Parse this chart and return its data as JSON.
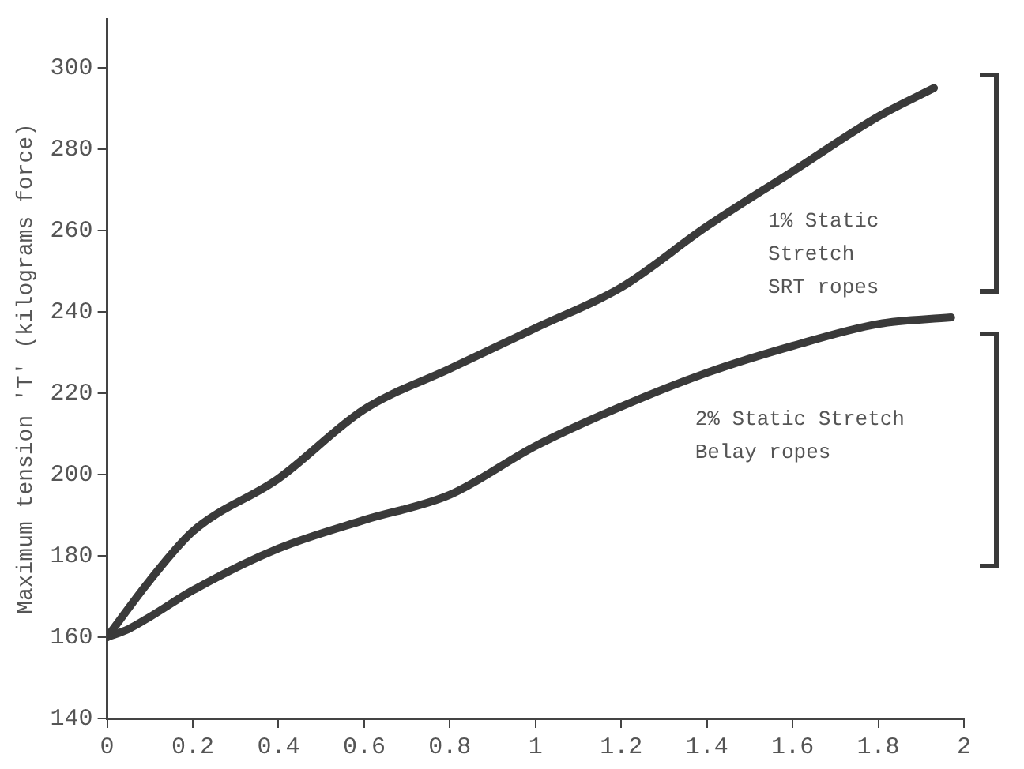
{
  "chart_data": {
    "type": "line",
    "ylabel": "Maximum tension 'T' (kilograms force)",
    "xlim": [
      0,
      2
    ],
    "xticks": [
      0,
      0.2,
      0.4,
      0.6,
      0.8,
      1,
      1.2,
      1.4,
      1.6,
      1.8,
      2
    ],
    "ylim": [
      140,
      312
    ],
    "yticks": [
      140,
      160,
      180,
      200,
      220,
      240,
      260,
      280,
      300
    ],
    "grid": false,
    "legend": false,
    "marker": "none",
    "line_style": "solid",
    "series": [
      {
        "name": "1% Static Stretch SRT ropes",
        "color": "#3a3a3a",
        "x": [
          0,
          0.1,
          0.2,
          0.4,
          0.6,
          0.8,
          1,
          1.2,
          1.4,
          1.6,
          1.8,
          1.93
        ],
        "values": [
          160,
          174,
          186,
          199,
          216,
          226,
          236,
          246,
          261,
          274.5,
          288,
          295
        ]
      },
      {
        "name": "2% Static Stretch Belay ropes",
        "color": "#3a3a3a",
        "x": [
          0,
          0.05,
          0.1,
          0.2,
          0.4,
          0.6,
          0.8,
          1,
          1.2,
          1.4,
          1.6,
          1.8,
          1.97
        ],
        "values": [
          160,
          162,
          165,
          171.5,
          181.8,
          188.8,
          195,
          207,
          216.7,
          225,
          231.6,
          237,
          238.6
        ]
      }
    ]
  }
}
